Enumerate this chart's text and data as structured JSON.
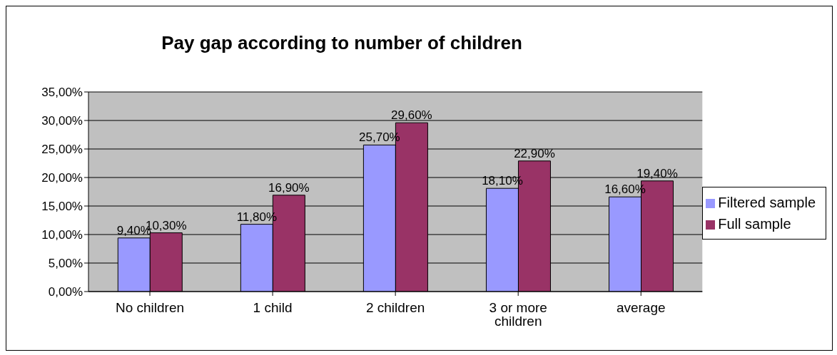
{
  "chart_data": {
    "type": "bar",
    "title": "Pay gap according to number of children",
    "categories": [
      "No children",
      "1 child",
      "2 children",
      "3 or more children",
      "average"
    ],
    "series": [
      {
        "name": "Filtered sample",
        "color": "#9999ff",
        "values": [
          9.4,
          11.8,
          25.7,
          18.1,
          16.6
        ],
        "value_labels": [
          "9,40%",
          "11,80%",
          "25,70%",
          "18,10%",
          "16,60%"
        ]
      },
      {
        "name": "Full sample",
        "color": "#993366",
        "values": [
          10.3,
          16.9,
          29.6,
          22.9,
          19.4
        ],
        "value_labels": [
          "10,30%",
          "16,90%",
          "29,60%",
          "22,90%",
          "19,40%"
        ]
      }
    ],
    "ylim": [
      0,
      35
    ],
    "yticks": [
      {
        "value": 0,
        "label": "0,00%"
      },
      {
        "value": 5,
        "label": "5,00%"
      },
      {
        "value": 10,
        "label": "10,00%"
      },
      {
        "value": 15,
        "label": "15,00%"
      },
      {
        "value": 20,
        "label": "20,00%"
      },
      {
        "value": 25,
        "label": "25,00%"
      },
      {
        "value": 30,
        "label": "30,00%"
      },
      {
        "value": 35,
        "label": "35,00%"
      }
    ],
    "grid": "y",
    "legend": "right"
  }
}
